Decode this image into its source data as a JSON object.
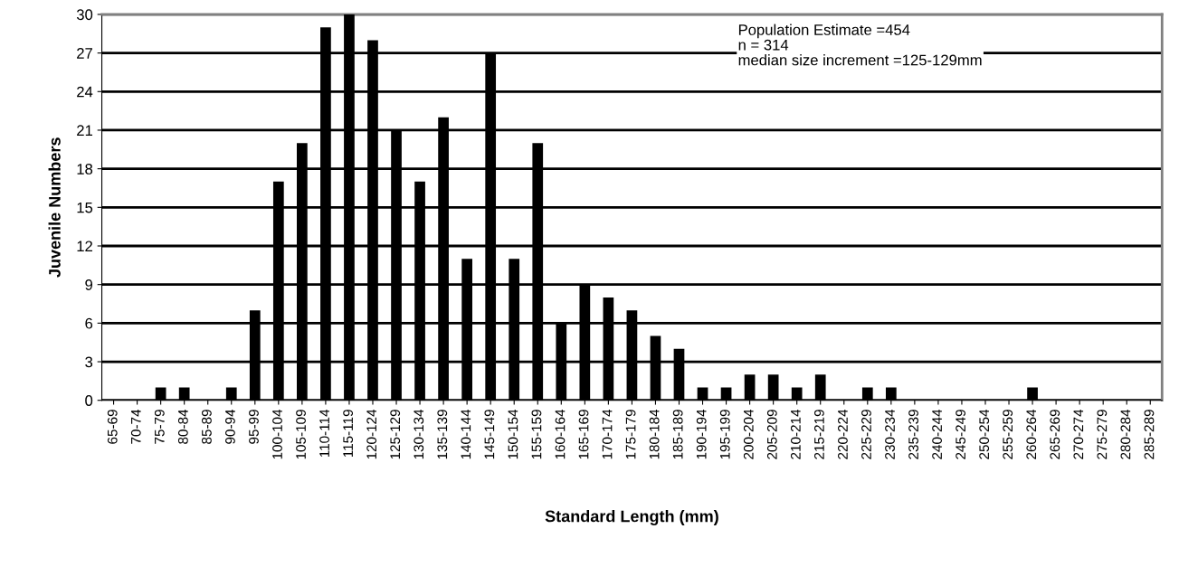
{
  "chart_data": {
    "type": "bar",
    "xlabel": "Standard Length (mm)",
    "ylabel": "Juvenile Numbers",
    "categories": [
      "65-69",
      "70-74",
      "75-79",
      "80-84",
      "85-89",
      "90-94",
      "95-99",
      "100-104",
      "105-109",
      "110-114",
      "115-119",
      "120-124",
      "125-129",
      "130-134",
      "135-139",
      "140-144",
      "145-149",
      "150-154",
      "155-159",
      "160-164",
      "165-169",
      "170-174",
      "175-179",
      "180-184",
      "185-189",
      "190-194",
      "195-199",
      "200-204",
      "205-209",
      "210-214",
      "215-219",
      "220-224",
      "225-229",
      "230-234",
      "235-239",
      "240-244",
      "245-249",
      "250-254",
      "255-259",
      "260-264",
      "265-269",
      "270-274",
      "275-279",
      "280-284",
      "285-289"
    ],
    "values": [
      0,
      0,
      1,
      1,
      0,
      1,
      7,
      17,
      20,
      29,
      30,
      28,
      21,
      17,
      22,
      11,
      27,
      11,
      20,
      6,
      9,
      8,
      7,
      5,
      4,
      1,
      1,
      2,
      2,
      1,
      2,
      0,
      1,
      1,
      0,
      0,
      0,
      0,
      0,
      1,
      0,
      0,
      0,
      0,
      0
    ],
    "color": "#000000",
    "ylim": [
      0,
      30
    ],
    "yticks": [
      0,
      3,
      6,
      9,
      12,
      15,
      18,
      21,
      24,
      27,
      30
    ],
    "grid": "y",
    "legend": false,
    "annotations": [
      "Population Estimate =454\nn = 314\nmedian size increment =125-129mm"
    ]
  }
}
